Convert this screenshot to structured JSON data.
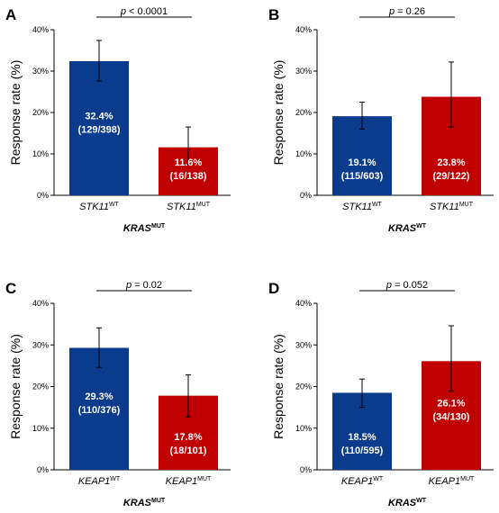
{
  "chart_data": [
    {
      "panel": "A",
      "type": "bar",
      "categories": [
        {
          "gene": "STK11",
          "status": "WT"
        },
        {
          "gene": "STK11",
          "status": "MUT"
        }
      ],
      "values": [
        32.4,
        11.6
      ],
      "error_upper": [
        37.4,
        16.5
      ],
      "error_lower": [
        27.6,
        7.5
      ],
      "bar_labels": [
        {
          "pct": "32.4%",
          "n": "(129/398)"
        },
        {
          "pct": "11.6%",
          "n": "(16/138)"
        }
      ],
      "colors": [
        "#0B3B8C",
        "#C00000"
      ],
      "p_value": {
        "p": "p",
        "rest": " < 0.0001"
      },
      "ylabel": "Response rate (%)",
      "ylim": [
        0,
        40
      ],
      "yticks": [
        "0%",
        "10%",
        "20%",
        "30%",
        "40%"
      ],
      "group_label": {
        "gene": "KRAS",
        "status": "MUT"
      }
    },
    {
      "panel": "B",
      "type": "bar",
      "categories": [
        {
          "gene": "STK11",
          "status": "WT"
        },
        {
          "gene": "STK11",
          "status": "MUT"
        }
      ],
      "values": [
        19.1,
        23.8
      ],
      "error_upper": [
        22.5,
        32.2
      ],
      "error_lower": [
        16.0,
        16.5
      ],
      "bar_labels": [
        {
          "pct": "19.1%",
          "n": "(115/603)"
        },
        {
          "pct": "23.8%",
          "n": "(29/122)"
        }
      ],
      "colors": [
        "#0B3B8C",
        "#C00000"
      ],
      "p_value": {
        "p": "p",
        "rest": " = 0.26"
      },
      "ylabel": "Response rate (%)",
      "ylim": [
        0,
        40
      ],
      "yticks": [
        "0%",
        "10%",
        "20%",
        "30%",
        "40%"
      ],
      "group_label": {
        "gene": "KRAS",
        "status": "WT"
      }
    },
    {
      "panel": "C",
      "type": "bar",
      "categories": [
        {
          "gene": "KEAP1",
          "status": "WT"
        },
        {
          "gene": "KEAP1",
          "status": "MUT"
        }
      ],
      "values": [
        29.3,
        17.8
      ],
      "error_upper": [
        34.1,
        22.8
      ],
      "error_lower": [
        24.6,
        12.7
      ],
      "bar_labels": [
        {
          "pct": "29.3%",
          "n": "(110/376)"
        },
        {
          "pct": "17.8%",
          "n": "(18/101)"
        }
      ],
      "colors": [
        "#0B3B8C",
        "#C00000"
      ],
      "p_value": {
        "p": "p",
        "rest": " = 0.02"
      },
      "ylabel": "Response rate (%)",
      "ylim": [
        0,
        40
      ],
      "yticks": [
        "0%",
        "10%",
        "20%",
        "30%",
        "40%"
      ],
      "group_label": {
        "gene": "KRAS",
        "status": "MUT"
      }
    },
    {
      "panel": "D",
      "type": "bar",
      "categories": [
        {
          "gene": "KEAP1",
          "status": "WT"
        },
        {
          "gene": "KEAP1",
          "status": "MUT"
        }
      ],
      "values": [
        18.5,
        26.1
      ],
      "error_upper": [
        21.8,
        34.6
      ],
      "error_lower": [
        15.0,
        18.9
      ],
      "bar_labels": [
        {
          "pct": "18.5%",
          "n": "(110/595)"
        },
        {
          "pct": "26.1%",
          "n": "(34/130)"
        }
      ],
      "colors": [
        "#0B3B8C",
        "#C00000"
      ],
      "p_value": {
        "p": "p",
        "rest": " = 0.052"
      },
      "ylabel": "Response rate (%)",
      "ylim": [
        0,
        40
      ],
      "yticks": [
        "0%",
        "10%",
        "20%",
        "30%",
        "40%"
      ],
      "group_label": {
        "gene": "KRAS",
        "status": "WT"
      }
    }
  ]
}
